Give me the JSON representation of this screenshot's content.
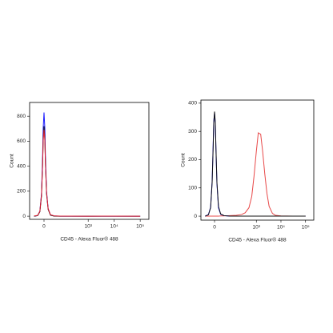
{
  "chart_data": [
    {
      "type": "line",
      "xscale": "biex",
      "xlabel": "CD45 - Alexa Fluor® 488",
      "ylabel": "Count",
      "x": [
        -40,
        -24,
        -15,
        -9,
        -5,
        -3,
        0,
        3,
        5,
        9,
        15,
        24,
        40,
        80,
        200,
        1000,
        10000,
        100000
      ],
      "series": [
        {
          "color": "#1a1aff",
          "values": [
            0,
            5,
            40,
            180,
            480,
            700,
            830,
            700,
            480,
            200,
            60,
            10,
            2,
            0,
            0,
            0,
            0,
            0
          ]
        },
        {
          "color": "#111111",
          "values": [
            0,
            4,
            35,
            160,
            420,
            620,
            720,
            620,
            430,
            180,
            55,
            8,
            1,
            0,
            0,
            0,
            0,
            0
          ]
        },
        {
          "color": "#e02030",
          "values": [
            2,
            6,
            40,
            170,
            410,
            600,
            690,
            600,
            420,
            190,
            60,
            12,
            3,
            1,
            1,
            0,
            1,
            0
          ]
        }
      ],
      "xlim": [
        -66,
        216000
      ],
      "xticks": [
        0,
        {
          "value": 1000,
          "label": "10³"
        },
        {
          "value": 10000,
          "label": "10⁴"
        },
        {
          "value": 100000,
          "label": "10⁵"
        }
      ],
      "ylim": [
        -25,
        910
      ],
      "yticks": [
        0,
        200,
        400,
        600,
        800
      ]
    },
    {
      "type": "line",
      "xscale": "biex",
      "xlabel": "CD45 - Alexa Fluor® 488",
      "ylabel": "Count",
      "x": [
        -40,
        -24,
        -15,
        -9,
        -5,
        -3,
        0,
        3,
        5,
        9,
        15,
        24,
        40,
        80,
        150,
        250,
        350,
        500,
        650,
        800,
        1000,
        1200,
        1500,
        1800,
        2200,
        2700,
        3300,
        4500,
        6000,
        10000,
        30000,
        100000
      ],
      "series": [
        {
          "color": "#e84848",
          "values": [
            0,
            0,
            0,
            0,
            0,
            0,
            0,
            0,
            0,
            0,
            0,
            1,
            1,
            2,
            3,
            6,
            12,
            30,
            70,
            140,
            230,
            295,
            290,
            230,
            150,
            80,
            35,
            10,
            3,
            1,
            0,
            0
          ]
        },
        {
          "color": "#1a1aff",
          "values": [
            0,
            6,
            32,
            125,
            260,
            335,
            365,
            325,
            245,
            115,
            30,
            7,
            2,
            0,
            0,
            0,
            0,
            0,
            0,
            0,
            0,
            0,
            0,
            0,
            0,
            0,
            0,
            0,
            0,
            0,
            0,
            0
          ]
        },
        {
          "color": "#111111",
          "values": [
            0,
            5,
            30,
            120,
            250,
            330,
            370,
            330,
            250,
            120,
            35,
            8,
            2,
            0,
            0,
            0,
            0,
            0,
            0,
            0,
            0,
            0,
            0,
            0,
            0,
            0,
            0,
            0,
            0,
            0,
            0,
            0
          ]
        }
      ],
      "xlim": [
        -66,
        216000
      ],
      "xticks": [
        0,
        {
          "value": 1000,
          "label": "10³"
        },
        {
          "value": 10000,
          "label": "10⁴"
        },
        {
          "value": 100000,
          "label": "10⁵"
        }
      ],
      "ylim": [
        -14,
        411
      ],
      "yticks": [
        0,
        100,
        200,
        300,
        400
      ]
    }
  ]
}
